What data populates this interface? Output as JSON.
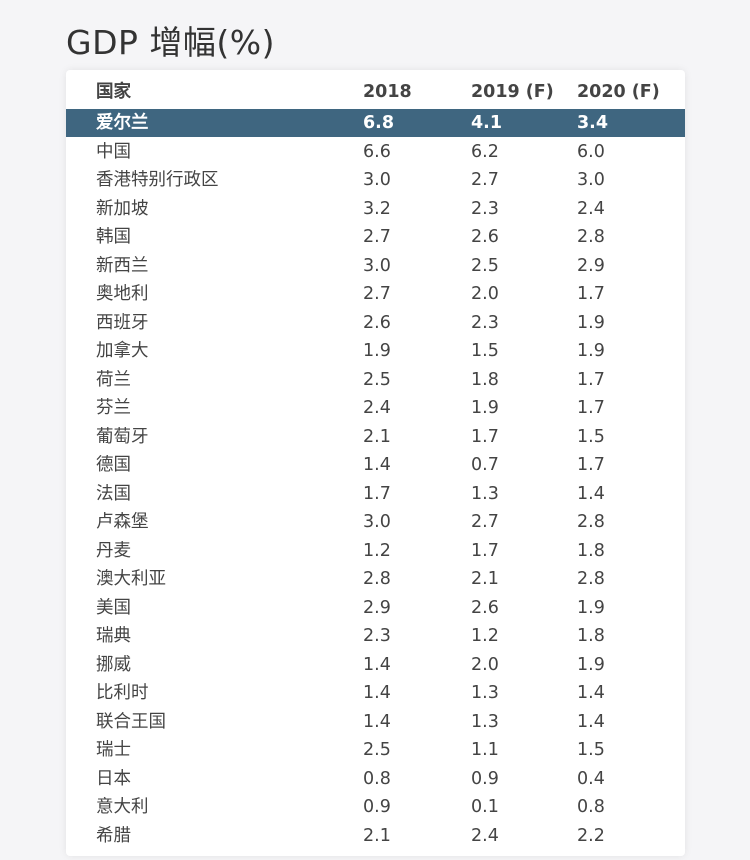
{
  "title": "GDP 增幅(%)",
  "colors": {
    "highlight_row": "#3f6680",
    "highlight_text": "#ffffff"
  },
  "table": {
    "headers": [
      "国家",
      "2018",
      "2019 (F)",
      "2020 (F)"
    ],
    "highlighted_row": 0,
    "rows": [
      [
        "爱尔兰",
        "6.8",
        "4.1",
        "3.4"
      ],
      [
        "中国",
        "6.6",
        "6.2",
        "6.0"
      ],
      [
        "香港特别行政区",
        "3.0",
        "2.7",
        "3.0"
      ],
      [
        "新加坡",
        "3.2",
        "2.3",
        "2.4"
      ],
      [
        "韩国",
        "2.7",
        "2.6",
        "2.8"
      ],
      [
        "新西兰",
        "3.0",
        "2.5",
        "2.9"
      ],
      [
        "奥地利",
        "2.7",
        "2.0",
        "1.7"
      ],
      [
        "西班牙",
        "2.6",
        "2.3",
        "1.9"
      ],
      [
        "加拿大",
        "1.9",
        "1.5",
        "1.9"
      ],
      [
        "荷兰",
        "2.5",
        "1.8",
        "1.7"
      ],
      [
        "芬兰",
        "2.4",
        "1.9",
        "1.7"
      ],
      [
        "葡萄牙",
        "2.1",
        "1.7",
        "1.5"
      ],
      [
        "德国",
        "1.4",
        "0.7",
        "1.7"
      ],
      [
        "法国",
        "1.7",
        "1.3",
        "1.4"
      ],
      [
        "卢森堡",
        "3.0",
        "2.7",
        "2.8"
      ],
      [
        "丹麦",
        "1.2",
        "1.7",
        "1.8"
      ],
      [
        "澳大利亚",
        "2.8",
        "2.1",
        "2.8"
      ],
      [
        "美国",
        "2.9",
        "2.6",
        "1.9"
      ],
      [
        "瑞典",
        "2.3",
        "1.2",
        "1.8"
      ],
      [
        "挪威",
        "1.4",
        "2.0",
        "1.9"
      ],
      [
        "比利时",
        "1.4",
        "1.3",
        "1.4"
      ],
      [
        "联合王国",
        "1.4",
        "1.3",
        "1.4"
      ],
      [
        "瑞士",
        "2.5",
        "1.1",
        "1.5"
      ],
      [
        "日本",
        "0.8",
        "0.9",
        "0.4"
      ],
      [
        "意大利",
        "0.9",
        "0.1",
        "0.8"
      ],
      [
        "希腊",
        "2.1",
        "2.4",
        "2.2"
      ]
    ]
  }
}
